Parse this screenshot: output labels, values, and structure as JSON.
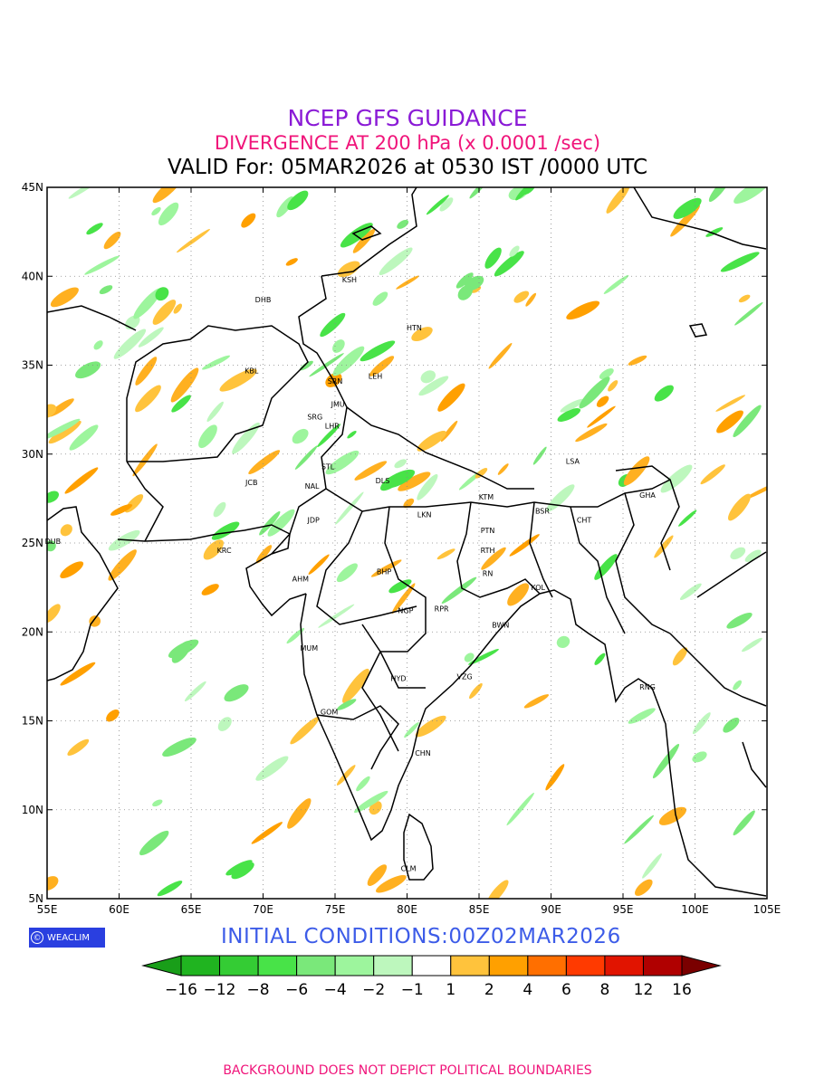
{
  "titles": {
    "line1": "NCEP GFS GUIDANCE",
    "line2": "DIVERGENCE AT 200 hPa (x 0.0001 /sec)",
    "line3": "VALID For: 05MAR2026 at 0530 IST /0000 UTC"
  },
  "title_colors": {
    "line1": "#8a1ad6",
    "line2": "#f0147a",
    "line3": "#000000"
  },
  "axes": {
    "lat_labels": [
      "45N",
      "40N",
      "35N",
      "30N",
      "25N",
      "20N",
      "15N",
      "10N",
      "5N"
    ],
    "lon_labels": [
      "55E",
      "60E",
      "65E",
      "70E",
      "75E",
      "80E",
      "85E",
      "90E",
      "95E",
      "100E",
      "105E"
    ],
    "lat_range": [
      5,
      45
    ],
    "lon_range": [
      55,
      105
    ]
  },
  "cities": [
    {
      "name": "DHB",
      "lon": 70,
      "lat": 38.7
    },
    {
      "name": "KSH",
      "lon": 76,
      "lat": 39.8
    },
    {
      "name": "HTN",
      "lon": 80.5,
      "lat": 37.1
    },
    {
      "name": "KBL",
      "lon": 69.2,
      "lat": 34.7
    },
    {
      "name": "SRN",
      "lon": 75,
      "lat": 34.1
    },
    {
      "name": "LEH",
      "lon": 77.8,
      "lat": 34.4
    },
    {
      "name": "JMU",
      "lon": 75.2,
      "lat": 32.8
    },
    {
      "name": "SRG",
      "lon": 73.6,
      "lat": 32.1
    },
    {
      "name": "LHR",
      "lon": 74.8,
      "lat": 31.6
    },
    {
      "name": "STL",
      "lon": 74.5,
      "lat": 29.3
    },
    {
      "name": "JCB",
      "lon": 69.2,
      "lat": 28.4
    },
    {
      "name": "NAL",
      "lon": 73.4,
      "lat": 28.2
    },
    {
      "name": "DLS",
      "lon": 78.3,
      "lat": 28.5
    },
    {
      "name": "LSA",
      "lon": 91.5,
      "lat": 29.6
    },
    {
      "name": "KTM",
      "lon": 85.5,
      "lat": 27.6
    },
    {
      "name": "GHA",
      "lon": 96.7,
      "lat": 27.7
    },
    {
      "name": "BSR",
      "lon": 89.4,
      "lat": 26.8
    },
    {
      "name": "JDP",
      "lon": 73.5,
      "lat": 26.3
    },
    {
      "name": "LKN",
      "lon": 81.2,
      "lat": 26.6
    },
    {
      "name": "CHT",
      "lon": 92.3,
      "lat": 26.3
    },
    {
      "name": "DUB",
      "lon": 55.4,
      "lat": 25.1
    },
    {
      "name": "PTN",
      "lon": 85.6,
      "lat": 25.7
    },
    {
      "name": "KRC",
      "lon": 67.3,
      "lat": 24.6
    },
    {
      "name": "RTH",
      "lon": 85.6,
      "lat": 24.6
    },
    {
      "name": "AHM",
      "lon": 72.6,
      "lat": 23.0
    },
    {
      "name": "BHP",
      "lon": 78.4,
      "lat": 23.4
    },
    {
      "name": "RN",
      "lon": 85.6,
      "lat": 23.3
    },
    {
      "name": "KOL",
      "lon": 89.1,
      "lat": 22.5
    },
    {
      "name": "NGP",
      "lon": 79.9,
      "lat": 21.2
    },
    {
      "name": "RPR",
      "lon": 82.4,
      "lat": 21.3
    },
    {
      "name": "BWN",
      "lon": 86.5,
      "lat": 20.4
    },
    {
      "name": "MUM",
      "lon": 73.2,
      "lat": 19.1
    },
    {
      "name": "HYD",
      "lon": 79.4,
      "lat": 17.4
    },
    {
      "name": "VZG",
      "lon": 84.0,
      "lat": 17.5
    },
    {
      "name": "RNG",
      "lon": 96.7,
      "lat": 16.9
    },
    {
      "name": "GOM",
      "lon": 74.6,
      "lat": 15.5
    },
    {
      "name": "CHN",
      "lon": 81.1,
      "lat": 13.2
    },
    {
      "name": "CLM",
      "lon": 80.1,
      "lat": 6.7
    }
  ],
  "colorbar": {
    "labels": [
      "−16",
      "−12",
      "−8",
      "−6",
      "−4",
      "−2",
      "−1",
      "1",
      "2",
      "4",
      "6",
      "8",
      "12",
      "16"
    ],
    "colors": [
      "#199e19",
      "#20b420",
      "#34cc34",
      "#48e348",
      "#7ae87a",
      "#9df59d",
      "#bdf7bd",
      "#ffffff",
      "#ffc33c",
      "#ffa000",
      "#ff6f00",
      "#ff3a00",
      "#e11400",
      "#b00000",
      "#7a0000"
    ]
  },
  "footer": {
    "initial_conditions": "INITIAL CONDITIONS:00Z02MAR2026",
    "disclaimer": "BACKGROUND DOES NOT DEPICT POLITICAL BOUNDARIES",
    "logo_text": "WEACLIM",
    "logo_icon": "copyright-icon",
    "init_color": "#3d5ce8",
    "disclaimer_color": "#f0147a"
  }
}
